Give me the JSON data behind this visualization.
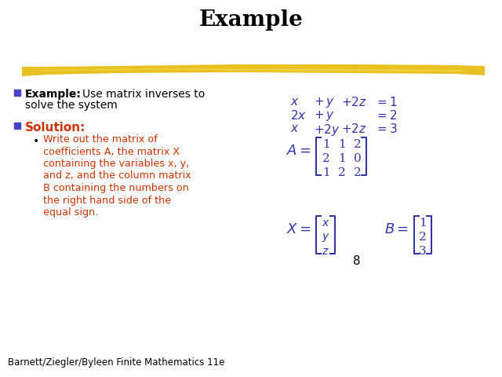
{
  "title": "Example",
  "title_fontsize": 20,
  "background_color": "#ffffff",
  "text_color_black": "#000000",
  "eq_color": "#3333aa",
  "red_color": "#cc3300",
  "blue_bullet_color": "#4444cc",
  "footer_text": "Barnett/Ziegler/Byleen Finite Mathematics 11e",
  "page_number": "8",
  "bar_color": "#E8C020",
  "bar_color2": "#D4A800",
  "entries_A": [
    [
      "1",
      "1",
      "2"
    ],
    [
      "2",
      "1",
      "0"
    ],
    [
      "1",
      "2",
      "2"
    ]
  ],
  "entries_X": [
    "x",
    "y",
    "z"
  ],
  "entries_B": [
    "1",
    "2",
    "3"
  ]
}
